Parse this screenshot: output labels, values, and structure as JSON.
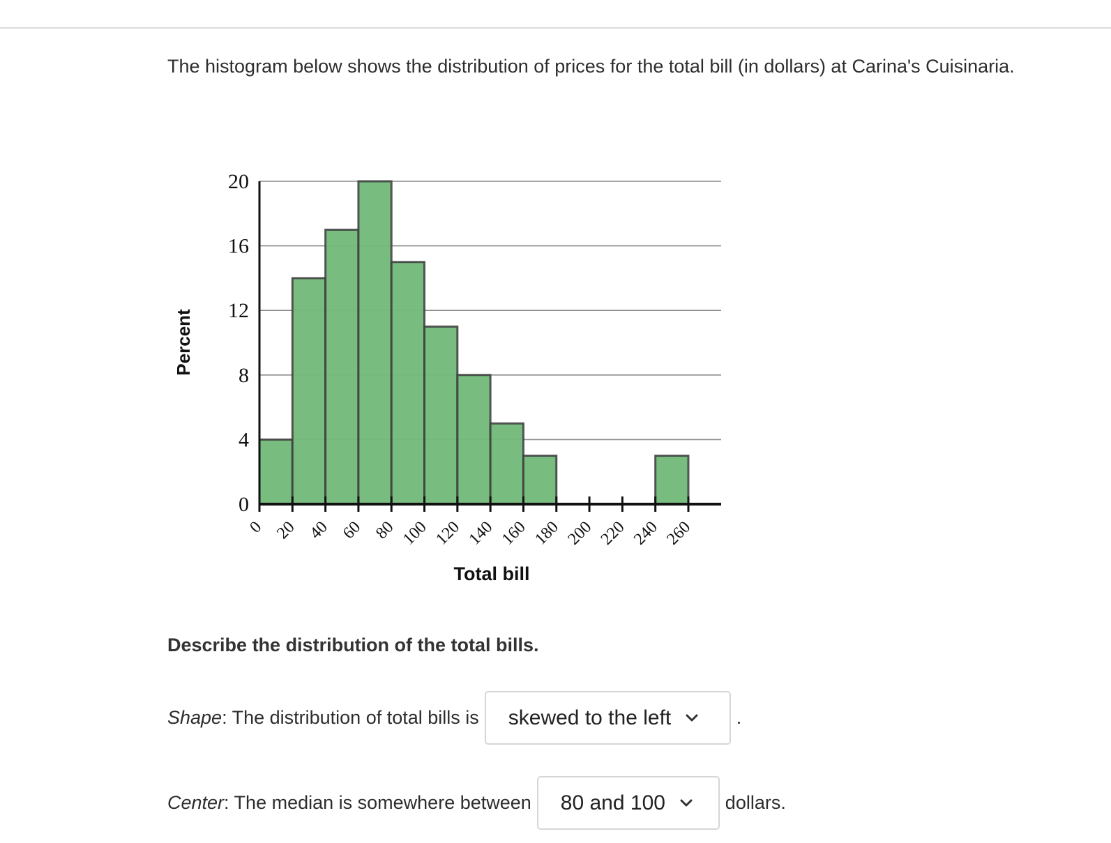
{
  "prompt": {
    "intro": "The histogram below shows the distribution of prices for the total bill (in dollars) at Carina's Cuisinaria."
  },
  "chart_data": {
    "type": "bar",
    "subtype": "histogram",
    "xlabel": "Total bill",
    "ylabel": "Percent",
    "bin_edges": [
      0,
      20,
      40,
      60,
      80,
      100,
      120,
      140,
      160,
      180,
      200,
      220,
      240,
      260
    ],
    "values": [
      4,
      14,
      17,
      20,
      15,
      11,
      8,
      5,
      3,
      0,
      0,
      0,
      3
    ],
    "x_ticks": [
      "0",
      "20",
      "40",
      "60",
      "80",
      "100",
      "120",
      "140",
      "160",
      "180",
      "200",
      "220",
      "240",
      "260"
    ],
    "y_ticks": [
      "0",
      "4",
      "8",
      "12",
      "16",
      "20"
    ],
    "ylim": [
      0,
      20
    ],
    "xlim": [
      0,
      280
    ],
    "grid": true,
    "bar_color": "#74ba7c"
  },
  "question": {
    "heading": "Describe the distribution of the total bills.",
    "shape": {
      "label_italic": "Shape",
      "label_rest": ": The distribution of total bills is",
      "selected": "skewed to the left",
      "trailing": "."
    },
    "center": {
      "label_italic": "Center",
      "label_rest": ": The median is somewhere between",
      "selected": "80 and 100",
      "trailing": "dollars."
    }
  },
  "icons": {
    "dropdown": "chevron-down-icon"
  }
}
